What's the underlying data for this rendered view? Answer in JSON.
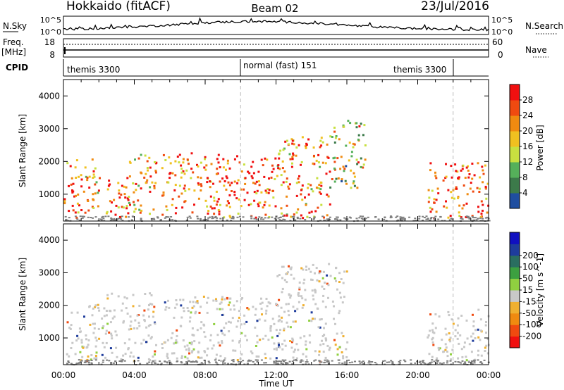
{
  "header": {
    "station": "Hokkaido (fitACF)",
    "beam": "Beam 02",
    "date": "23/Jul/2016"
  },
  "top_panels": {
    "nsky_label": "N.Sky",
    "nsky_ticks": [
      "10^5",
      "10^0"
    ],
    "nsearch_label": "N.Search",
    "nsearch_ticks": [
      "10^5",
      "10^0"
    ],
    "freq_label": "Freq.",
    "freq_unit": "[MHz]",
    "freq_ticks": [
      "18",
      "8"
    ],
    "nave_label": "Nave",
    "nave_ticks": [
      "60",
      "0"
    ],
    "cpid_label": "CPID",
    "cpid_segments": [
      "themis 3300",
      "normal (fast) 151",
      "themis 3300"
    ]
  },
  "colors": {
    "power": [
      "#1f1ff0",
      "#1f4ea0",
      "#3c7a4a",
      "#55b05a",
      "#c8e040",
      "#f0c020",
      "#f08a10",
      "#f04a10",
      "#f01010"
    ],
    "velocity": [
      "#f01010",
      "#f04a10",
      "#f08a10",
      "#f0b030",
      "#c8c8c8",
      "#90d040",
      "#3ca040",
      "#2a6e60",
      "#1e3c9c",
      "#1010c0"
    ],
    "ground": "#7f7f7f"
  },
  "chart_data": [
    {
      "type": "heatmap",
      "title": "Power",
      "xlabel": "Time UT",
      "ylabel": "Slant Range [km]",
      "x_ticks": [
        "00:00",
        "04:00",
        "08:00",
        "12:00",
        "16:00",
        "20:00",
        "00:00"
      ],
      "x_range_hours": [
        0,
        24
      ],
      "y_ticks": [
        "1000",
        "2000",
        "3000",
        "4000"
      ],
      "y_range_km": [
        180,
        4500
      ],
      "colorbar_label": "Power [dB]",
      "colorbar_ticks": [
        "4",
        "8",
        "12",
        "16",
        "20",
        "24",
        "28"
      ],
      "colorbar_range": [
        0,
        32
      ],
      "dashed_time_markers_hours": [
        10,
        22
      ],
      "scatter_regions_hours_km": [
        {
          "t0": 0,
          "t1": 2,
          "r0": 300,
          "r1": 2100,
          "level": 0.75
        },
        {
          "t0": 2.1,
          "t1": 3.5,
          "r0": 300,
          "r1": 1500,
          "level": 0.8
        },
        {
          "t0": 3.5,
          "t1": 5.2,
          "r0": 400,
          "r1": 2400,
          "level": 0.7
        },
        {
          "t0": 5.5,
          "t1": 9,
          "r0": 400,
          "r1": 2300,
          "level": 0.8
        },
        {
          "t0": 9,
          "t1": 12,
          "r0": 300,
          "r1": 2200,
          "level": 0.85
        },
        {
          "t0": 12,
          "t1": 15,
          "r0": 300,
          "r1": 2800,
          "level": 0.75
        },
        {
          "t0": 15,
          "t1": 17,
          "r0": 1200,
          "r1": 3300,
          "level": 0.55
        },
        {
          "t0": 20.5,
          "t1": 24,
          "r0": 300,
          "r1": 2000,
          "level": 0.85
        }
      ]
    },
    {
      "type": "heatmap",
      "title": "Velocity",
      "xlabel": "Time UT",
      "ylabel": "Slant Range [km]",
      "x_ticks": [
        "00:00",
        "04:00",
        "08:00",
        "12:00",
        "16:00",
        "20:00",
        "00:00"
      ],
      "x_range_hours": [
        0,
        24
      ],
      "y_ticks": [
        "1000",
        "2000",
        "3000",
        "4000"
      ],
      "y_range_km": [
        180,
        4500
      ],
      "colorbar_label": "Velocity [m s^-1]",
      "colorbar_ticks": [
        "-200",
        "-100",
        "-50",
        "-15",
        "15",
        "50",
        "100",
        "200"
      ],
      "colorbar_range": [
        -250,
        250
      ],
      "dashed_time_markers_hours": [
        10,
        22
      ],
      "scatter_regions_hours_km": [
        {
          "t0": 0,
          "t1": 2,
          "r0": 300,
          "r1": 2100,
          "level": 0.0
        },
        {
          "t0": 2.1,
          "t1": 5.2,
          "r0": 300,
          "r1": 2400,
          "level": 0.0
        },
        {
          "t0": 5.5,
          "t1": 12,
          "r0": 300,
          "r1": 2300,
          "level": 0.0
        },
        {
          "t0": 12,
          "t1": 16,
          "r0": 300,
          "r1": 3300,
          "level": 0.0
        },
        {
          "t0": 20.5,
          "t1": 24,
          "r0": 300,
          "r1": 1900,
          "level": 0.0
        }
      ]
    }
  ]
}
